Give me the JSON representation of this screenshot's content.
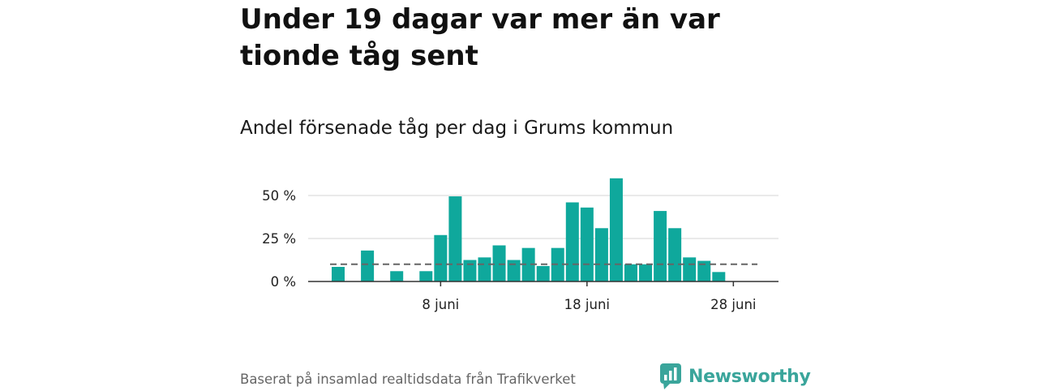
{
  "title": "Under 19 dagar var mer än var tionde tåg sent",
  "subtitle": "Andel försenade tåg per dag i Grums kommun",
  "footer": "Baserat på insamlad realtidsdata från Trafikverket",
  "brand": {
    "name": "Newsworthy",
    "icon": "newsworthy-logo-icon",
    "color": "#3aa59b"
  },
  "chart_data": {
    "type": "bar",
    "bar_color": "#0fa89c",
    "reference_line": {
      "value": 10,
      "style": "dashed",
      "color": "#666666"
    },
    "x": [
      "1 juni",
      "2 juni",
      "3 juni",
      "4 juni",
      "5 juni",
      "6 juni",
      "7 juni",
      "8 juni",
      "9 juni",
      "10 juni",
      "11 juni",
      "12 juni",
      "13 juni",
      "14 juni",
      "15 juni",
      "16 juni",
      "17 juni",
      "18 juni",
      "19 juni",
      "20 juni",
      "21 juni",
      "22 juni",
      "23 juni",
      "24 juni",
      "25 juni",
      "26 juni",
      "27 juni",
      "28 juni",
      "29 juni",
      "30 juni"
    ],
    "values": [
      8.5,
      0,
      18,
      0,
      6,
      0,
      6,
      27,
      49.5,
      12.5,
      14,
      21,
      12.5,
      19.5,
      9,
      19.5,
      46,
      43,
      31,
      60,
      10,
      10,
      41,
      31,
      14,
      12,
      5.5,
      0,
      0,
      0
    ],
    "xticks": [
      "8 juni",
      "18 juni",
      "28 juni"
    ],
    "yticks": [
      "0 %",
      "25 %",
      "50 %"
    ],
    "ylim": [
      0,
      62
    ],
    "grid": true
  }
}
